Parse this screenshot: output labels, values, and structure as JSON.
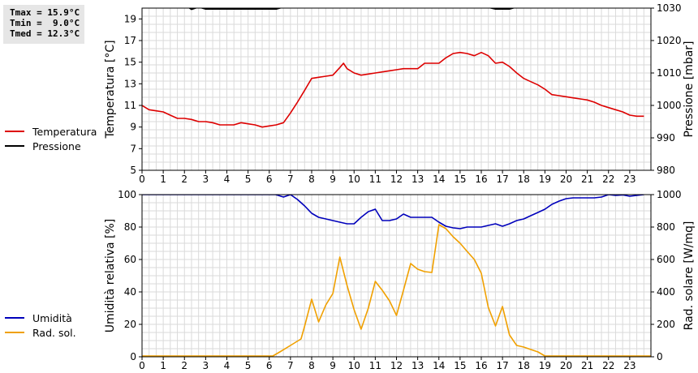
{
  "stats": {
    "tmax": "Tmax = 15.9°C",
    "tmin": "Tmin =  9.0°C",
    "tmed": "Tmed = 12.3°C"
  },
  "chart_data": [
    {
      "type": "line",
      "xlim": [
        0,
        24
      ],
      "x_ticks": [
        "0",
        "1",
        "2",
        "3",
        "4",
        "5",
        "6",
        "7",
        "8",
        "9",
        "10",
        "11",
        "12",
        "13",
        "14",
        "15",
        "16",
        "17",
        "18",
        "19",
        "20",
        "21",
        "22",
        "23"
      ],
      "grid": true,
      "legend": "left",
      "ylabel": "Temperatura [°C]",
      "ylim": [
        5,
        20
      ],
      "y_ticks": [
        "5",
        "7",
        "9",
        "11",
        "13",
        "15",
        "17",
        "19"
      ],
      "y2label": "Pressione [mbar]",
      "y2lim": [
        980,
        1030
      ],
      "y2_ticks": [
        "980",
        "990",
        "1000",
        "1010",
        "1020",
        "1030"
      ],
      "series": [
        {
          "name": "Temperatura",
          "color": "#dd0000",
          "axis": "left",
          "x": [
            0,
            0.33,
            0.67,
            1,
            1.33,
            1.67,
            2,
            2.33,
            2.67,
            3,
            3.33,
            3.67,
            4,
            4.33,
            4.67,
            5,
            5.33,
            5.67,
            6,
            6.33,
            6.67,
            7,
            7.33,
            7.67,
            8,
            8.33,
            8.67,
            9,
            9.33,
            9.5,
            9.67,
            10,
            10.33,
            10.67,
            11,
            11.33,
            11.67,
            12,
            12.33,
            12.67,
            13,
            13.33,
            13.67,
            14,
            14.33,
            14.67,
            15,
            15.33,
            15.67,
            16,
            16.33,
            16.67,
            17,
            17.33,
            17.67,
            18,
            18.33,
            18.67,
            19,
            19.33,
            19.67,
            20,
            20.33,
            20.67,
            21,
            21.33,
            21.67,
            22,
            22.33,
            22.67,
            23,
            23.33,
            23.67
          ],
          "values": [
            11,
            10.6,
            10.5,
            10.4,
            10.1,
            9.8,
            9.8,
            9.7,
            9.5,
            9.5,
            9.4,
            9.2,
            9.2,
            9.2,
            9.4,
            9.3,
            9.2,
            9.0,
            9.1,
            9.2,
            9.4,
            10.3,
            11.3,
            12.4,
            13.5,
            13.6,
            13.7,
            13.8,
            14.5,
            14.9,
            14.4,
            14.0,
            13.8,
            13.9,
            14.0,
            14.1,
            14.2,
            14.3,
            14.4,
            14.4,
            14.4,
            14.9,
            14.9,
            14.9,
            15.4,
            15.8,
            15.9,
            15.8,
            15.6,
            15.9,
            15.6,
            14.9,
            15.0,
            14.6,
            14.0,
            13.5,
            13.2,
            12.9,
            12.5,
            12.0,
            11.9,
            11.8,
            11.7,
            11.6,
            11.5,
            11.3,
            11.0,
            10.8,
            10.6,
            10.4,
            10.1,
            10.0,
            10.0
          ]
        },
        {
          "name": "Pressione",
          "color": "#000000",
          "axis": "right",
          "x": [
            0,
            2,
            2.33,
            2.67,
            3,
            6,
            6.33,
            6.67,
            7,
            16,
            16.33,
            16.67,
            17,
            17.33,
            17.67,
            18,
            24
          ],
          "values": [
            1031,
            1031,
            1029.6,
            1030.3,
            1029.7,
            1029.7,
            1029.7,
            1030.3,
            1031,
            1031,
            1030.2,
            1029.7,
            1029.7,
            1029.7,
            1030.3,
            1031,
            1031
          ]
        }
      ]
    },
    {
      "type": "line",
      "xlim": [
        0,
        24
      ],
      "x_ticks": [
        "0",
        "1",
        "2",
        "3",
        "4",
        "5",
        "6",
        "7",
        "8",
        "9",
        "10",
        "11",
        "12",
        "13",
        "14",
        "15",
        "16",
        "17",
        "18",
        "19",
        "20",
        "21",
        "22",
        "23"
      ],
      "grid": true,
      "legend": "left",
      "ylabel": "Umidità relativa [%]",
      "ylim": [
        0,
        100
      ],
      "y_ticks": [
        "0",
        "20",
        "40",
        "60",
        "80",
        "100"
      ],
      "y2label": "Rad. solare [W/mq]",
      "y2lim": [
        0,
        1000
      ],
      "y2_ticks": [
        "0",
        "200",
        "400",
        "600",
        "800",
        "1000"
      ],
      "series": [
        {
          "name": "Umidità",
          "color": "#0000bb",
          "axis": "left",
          "x": [
            0,
            6.3,
            6.67,
            7,
            7.33,
            7.67,
            8,
            8.33,
            8.67,
            9,
            9.33,
            9.67,
            10,
            10.33,
            10.67,
            11,
            11.33,
            11.67,
            12,
            12.33,
            12.67,
            13,
            13.33,
            13.67,
            14,
            14.33,
            14.67,
            15,
            15.33,
            15.67,
            16,
            16.33,
            16.67,
            17,
            17.33,
            17.67,
            18,
            18.33,
            18.67,
            19,
            19.33,
            19.67,
            20,
            20.33,
            20.67,
            21,
            21.33,
            21.67,
            22,
            22.33,
            22.67,
            23,
            23.33,
            23.67
          ],
          "values": [
            100,
            100,
            98.5,
            100,
            97,
            93,
            88.5,
            86,
            85,
            84,
            83,
            82,
            82,
            86,
            89.5,
            91,
            84,
            84,
            85,
            88,
            86,
            86,
            86,
            86,
            83,
            80.5,
            79.5,
            79,
            80,
            80,
            80,
            81,
            82,
            80.5,
            82,
            84,
            85,
            87,
            89,
            91,
            94,
            96,
            97.5,
            98,
            98,
            98,
            98,
            98.5,
            100,
            99.5,
            99.8,
            99,
            99.5,
            100
          ]
        },
        {
          "name": "Rad. sol.",
          "color": "#f0a000",
          "axis": "right",
          "x": [
            0,
            6.17,
            6.5,
            7,
            7.5,
            7.67,
            8,
            8.33,
            8.67,
            9,
            9.33,
            9.67,
            10,
            10.33,
            10.67,
            11,
            11.33,
            11.67,
            12,
            12.33,
            12.67,
            13,
            13.33,
            13.67,
            14,
            14.33,
            14.67,
            15,
            15.33,
            15.67,
            16,
            16.33,
            16.67,
            17,
            17.33,
            17.67,
            18,
            18.33,
            18.67,
            19,
            24
          ],
          "values": [
            5,
            5,
            30,
            70,
            110,
            190,
            355,
            215,
            320,
            390,
            615,
            440,
            290,
            170,
            300,
            465,
            410,
            345,
            255,
            410,
            575,
            540,
            525,
            520,
            815,
            790,
            740,
            700,
            650,
            600,
            515,
            305,
            190,
            310,
            135,
            70,
            60,
            45,
            30,
            5,
            5
          ]
        }
      ]
    }
  ]
}
